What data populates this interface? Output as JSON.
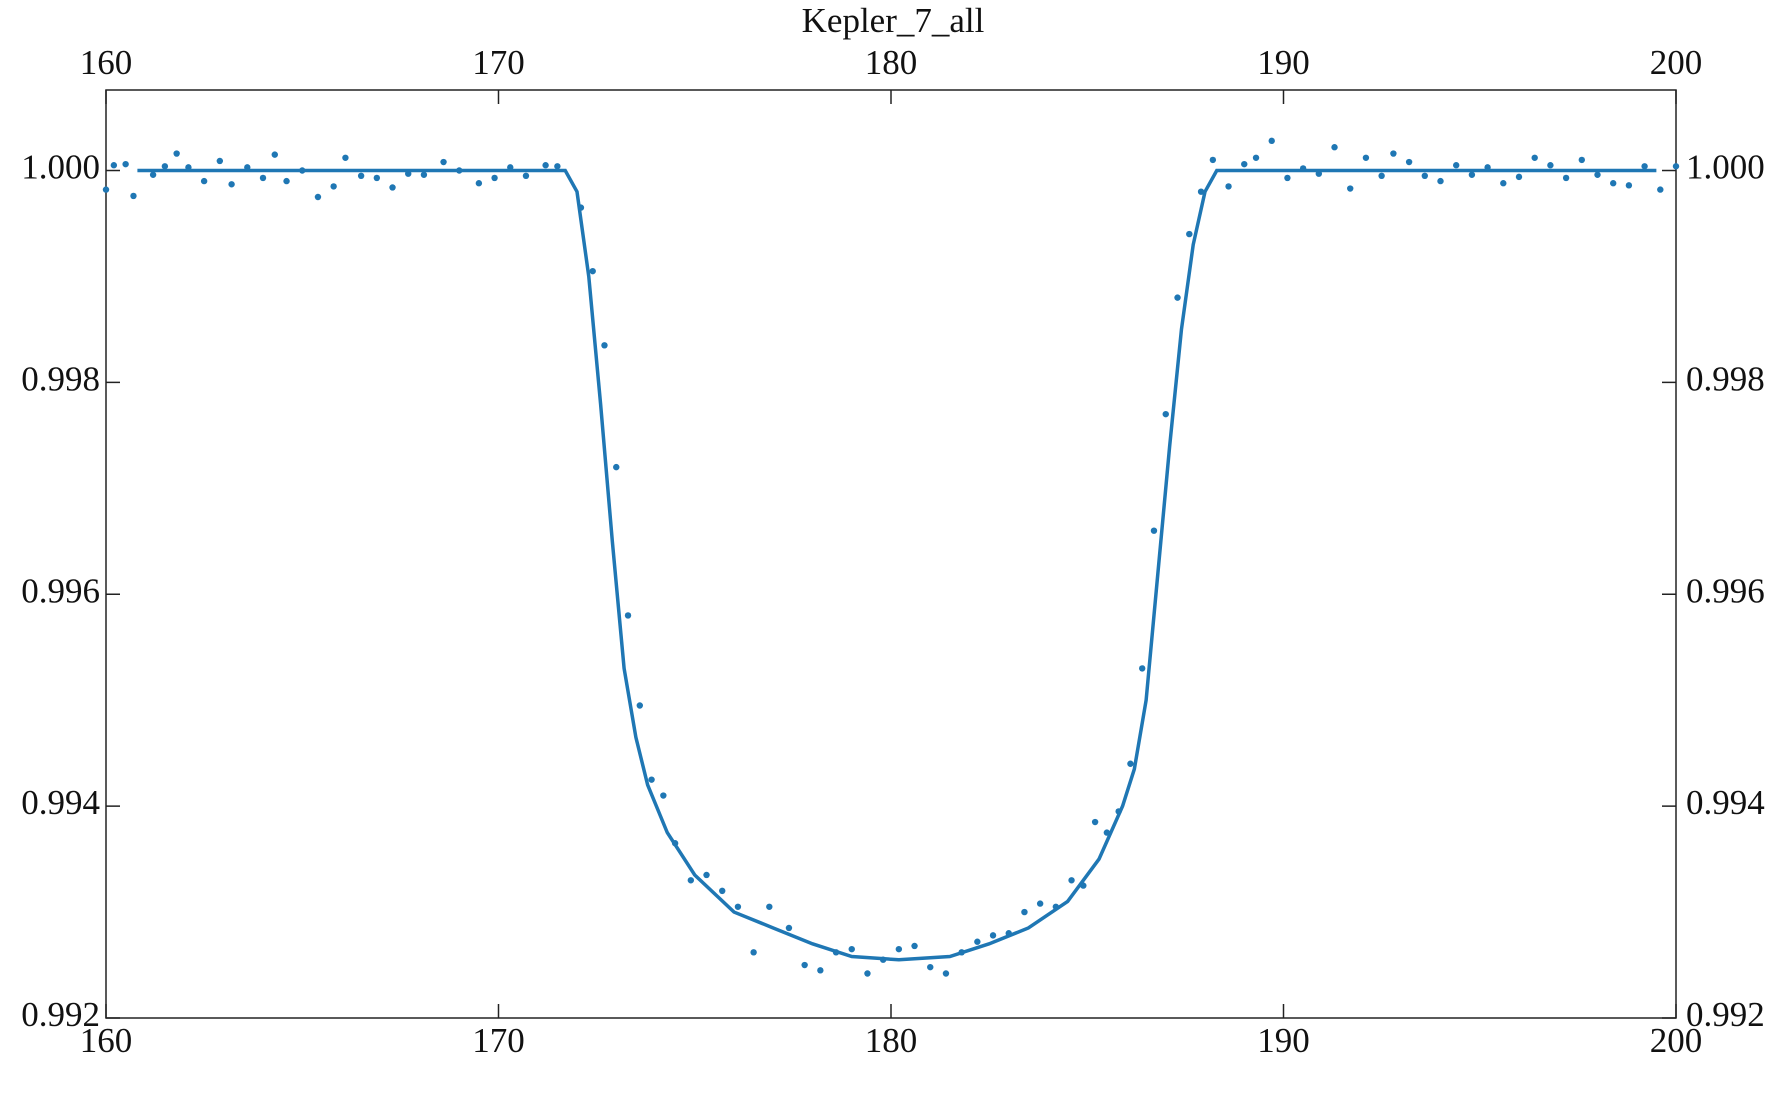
{
  "chart_data": {
    "type": "scatter",
    "title": "Kepler_7_all",
    "xlim": [
      160,
      200
    ],
    "xticks": [
      160,
      170,
      180,
      190,
      200
    ],
    "ylim": [
      0.992,
      1.00076
    ],
    "yticks": [
      0.992,
      0.994,
      0.996,
      0.998,
      {
        "value": 1,
        "label": "1.000"
      }
    ],
    "mirror_axes": true,
    "series": [
      {
        "mode": "markers",
        "color": "#1f77b4",
        "x": [
          160.0,
          160.2,
          160.5,
          160.7,
          161.2,
          161.5,
          161.8,
          162.1,
          162.5,
          162.9,
          163.2,
          163.6,
          164.0,
          164.3,
          164.6,
          165.0,
          165.4,
          165.8,
          166.1,
          166.5,
          166.9,
          167.3,
          167.7,
          168.1,
          168.6,
          169.0,
          169.5,
          169.9,
          170.3,
          170.7,
          171.2,
          171.5,
          172.1,
          172.4,
          172.7,
          173.0,
          173.3,
          173.6,
          173.9,
          174.2,
          174.5,
          174.9,
          175.3,
          175.7,
          176.1,
          176.5,
          176.9,
          177.4,
          177.8,
          178.2,
          178.6,
          179.0,
          179.4,
          179.8,
          180.2,
          180.6,
          181.0,
          181.4,
          181.8,
          182.2,
          182.6,
          183.0,
          183.4,
          183.8,
          184.2,
          184.6,
          184.9,
          185.2,
          185.5,
          185.8,
          186.1,
          186.4,
          186.7,
          187.0,
          187.3,
          187.6,
          187.9,
          188.2,
          188.6,
          189.0,
          189.3,
          189.7,
          190.1,
          190.5,
          190.9,
          191.3,
          191.7,
          192.1,
          192.5,
          192.8,
          193.2,
          193.6,
          194.0,
          194.4,
          194.8,
          195.2,
          195.6,
          196.0,
          196.4,
          196.8,
          197.2,
          197.6,
          198.0,
          198.4,
          198.8,
          199.2,
          199.6,
          200.0
        ],
        "values": [
          0.99982,
          1.00005,
          1.00006,
          0.99976,
          0.99996,
          1.00004,
          1.00016,
          1.00003,
          0.9999,
          1.00009,
          0.99987,
          1.00003,
          0.99993,
          1.00015,
          0.9999,
          1.0,
          0.99975,
          0.99985,
          1.00012,
          0.99995,
          0.99993,
          0.99984,
          0.99997,
          0.99996,
          1.00008,
          1.0,
          0.99988,
          0.99993,
          1.00003,
          0.99995,
          1.00005,
          1.00004,
          0.99965,
          0.99905,
          0.99835,
          0.9972,
          0.9958,
          0.99495,
          0.99425,
          0.9941,
          0.99365,
          0.9933,
          0.99335,
          0.9932,
          0.99305,
          0.99262,
          0.99305,
          0.99285,
          0.9925,
          0.99245,
          0.99262,
          0.99265,
          0.99242,
          0.99255,
          0.99265,
          0.99268,
          0.99248,
          0.99242,
          0.99262,
          0.99272,
          0.99278,
          0.9928,
          0.993,
          0.99308,
          0.99305,
          0.9933,
          0.99325,
          0.99385,
          0.99375,
          0.99395,
          0.9944,
          0.9953,
          0.9966,
          0.9977,
          0.9988,
          0.9994,
          0.9998,
          1.0001,
          0.99985,
          1.00006,
          1.00012,
          1.00028,
          0.99993,
          1.00002,
          0.99997,
          1.00022,
          0.99983,
          1.00012,
          0.99995,
          1.00016,
          1.00008,
          0.99995,
          0.9999,
          1.00005,
          0.99996,
          1.00003,
          0.99988,
          0.99994,
          1.00012,
          1.00005,
          0.99993,
          1.0001,
          0.99996,
          0.99988,
          0.99986,
          1.00004,
          0.99982,
          1.00004
        ]
      },
      {
        "mode": "line",
        "color": "#1f77b4",
        "x": [
          160.8,
          171.7,
          172.0,
          172.3,
          172.6,
          172.9,
          173.2,
          173.5,
          173.8,
          174.3,
          175.0,
          176.0,
          177.0,
          178.0,
          179.0,
          180.2,
          181.5,
          182.5,
          183.5,
          184.5,
          185.3,
          185.9,
          186.2,
          186.5,
          186.8,
          187.1,
          187.4,
          187.7,
          188.0,
          188.3,
          199.5
        ],
        "values": [
          1.0,
          1.0,
          0.9998,
          0.999,
          0.9978,
          0.9965,
          0.9953,
          0.99465,
          0.9942,
          0.99375,
          0.99335,
          0.993,
          0.99285,
          0.9927,
          0.99258,
          0.99255,
          0.99258,
          0.9927,
          0.99285,
          0.9931,
          0.9935,
          0.994,
          0.99435,
          0.995,
          0.9962,
          0.9974,
          0.9985,
          0.9993,
          0.9998,
          1.0,
          1.0
        ]
      }
    ]
  }
}
